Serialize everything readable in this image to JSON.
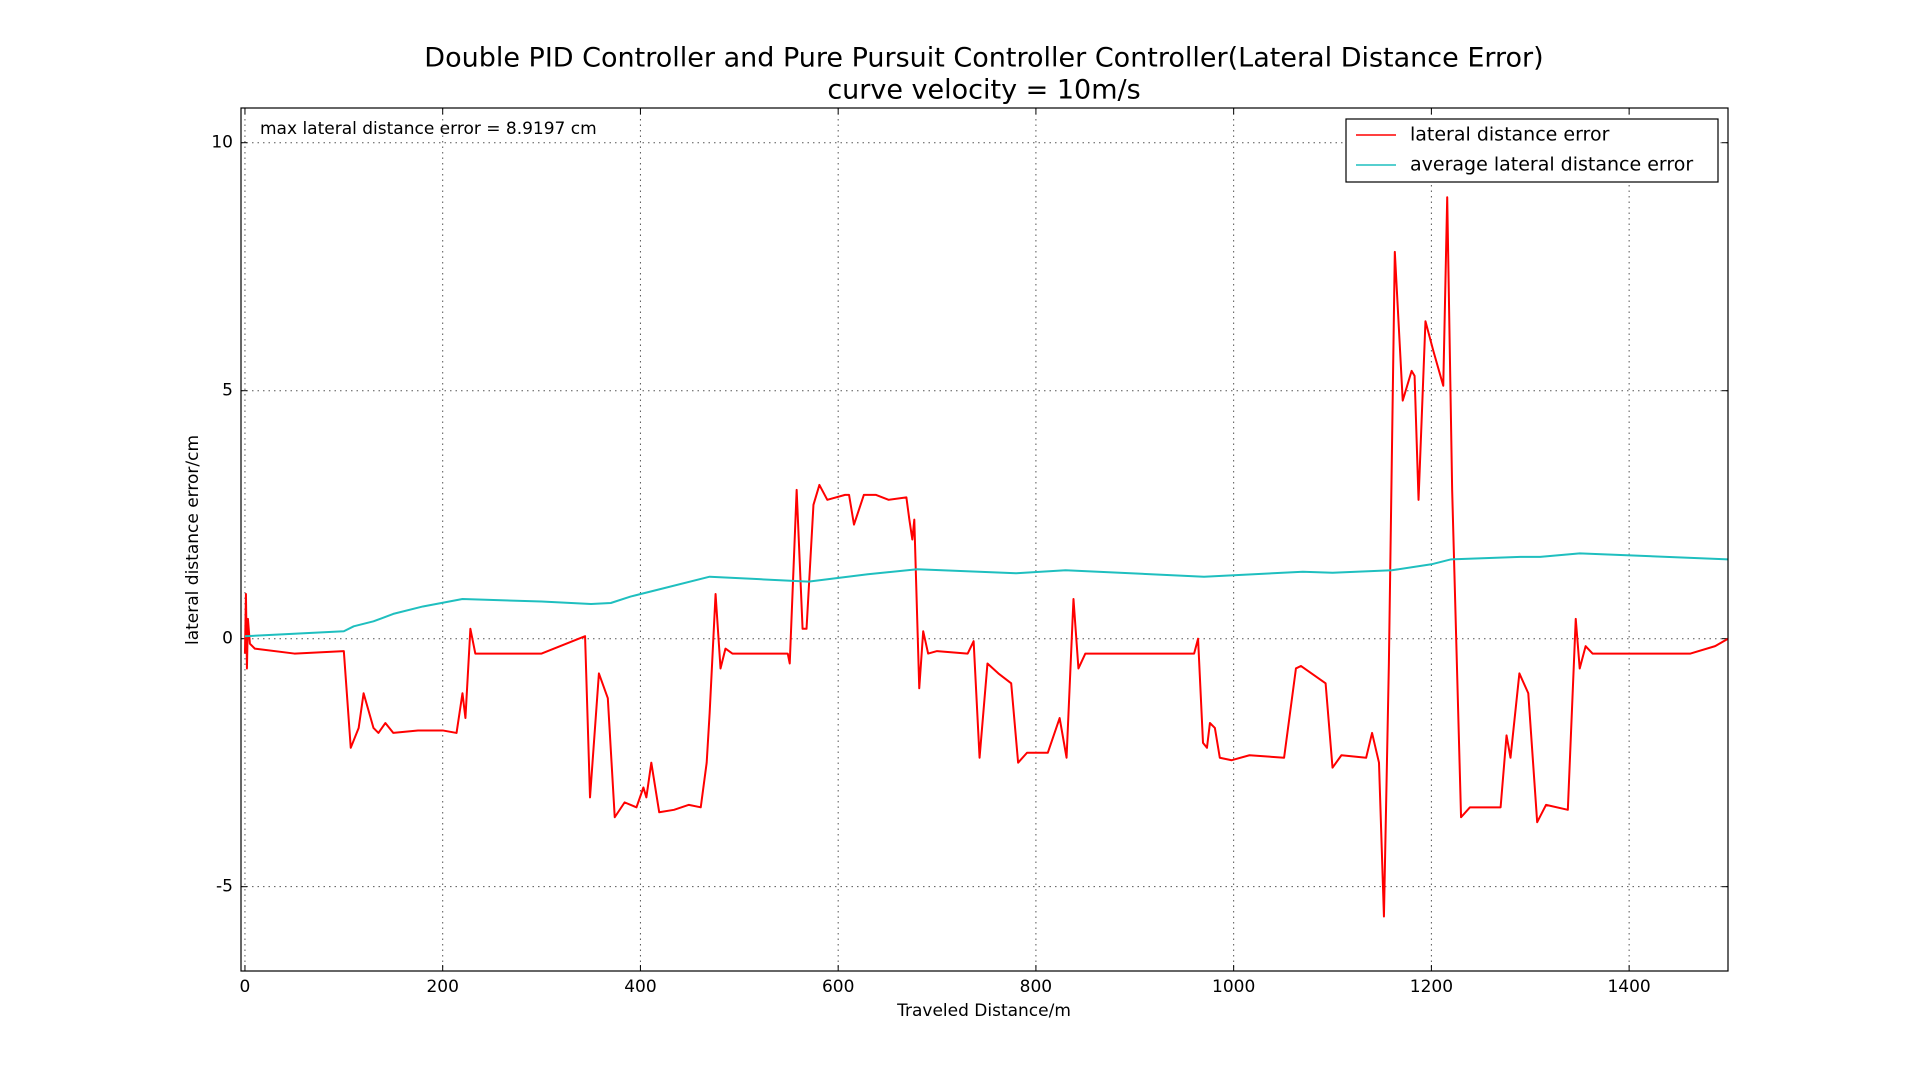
{
  "chart_data": {
    "type": "line",
    "title": "Double PID Controller and Pure Pursuit Controller Controller(Lateral Distance Error)",
    "subtitle": "curve velocity = 10m/s",
    "x_label": "Traveled Distance/m",
    "y_label": "lateral distance error/cm",
    "annotation": "max lateral distance error = 8.9197 cm",
    "xlim": [
      -4,
      1500
    ],
    "ylim": [
      -6.7,
      10.7
    ],
    "xticks": [
      0,
      200,
      400,
      600,
      800,
      1000,
      1200,
      1400
    ],
    "yticks": [
      -5,
      0,
      5,
      10
    ],
    "grid": true,
    "legend": "upper right",
    "series": [
      {
        "name": "lateral distance error",
        "color": "#ff0000",
        "x": [
          0,
          1,
          2,
          3,
          5,
          10,
          50,
          100,
          107,
          115,
          120,
          130,
          135,
          142,
          150,
          175,
          200,
          214,
          220,
          223,
          228,
          233,
          240,
          300,
          344,
          349,
          358,
          367,
          374,
          384,
          396,
          403,
          406,
          411,
          419,
          434,
          449,
          461,
          467,
          470,
          476,
          481,
          486,
          493,
          549,
          551,
          558,
          564,
          568,
          575,
          581,
          589,
          607,
          611,
          616,
          626,
          638,
          651,
          669,
          672,
          675,
          677,
          682,
          686,
          691,
          700,
          731,
          737,
          743,
          751,
          762,
          775,
          782,
          791,
          812,
          824,
          831,
          838,
          843,
          850,
          960,
          964,
          969,
          973,
          976,
          981,
          986,
          998,
          1016,
          1051,
          1063,
          1068,
          1093,
          1100,
          1109,
          1134,
          1140,
          1147,
          1152,
          1157,
          1163,
          1171,
          1180,
          1183,
          1187,
          1194,
          1202,
          1212,
          1216,
          1221,
          1230,
          1239,
          1270,
          1276,
          1280,
          1289,
          1298,
          1307,
          1316,
          1338,
          1341,
          1346,
          1350,
          1356,
          1363,
          1462,
          1487,
          1500
        ],
        "values": [
          -0.3,
          0.9,
          -0.6,
          0.4,
          -0.1,
          -0.2,
          -0.3,
          -0.25,
          -2.2,
          -1.8,
          -1.1,
          -1.8,
          -1.9,
          -1.7,
          -1.9,
          -1.85,
          -1.85,
          -1.9,
          -1.1,
          -1.6,
          0.2,
          -0.3,
          -0.3,
          -0.3,
          0.05,
          -3.2,
          -0.7,
          -1.2,
          -3.6,
          -3.3,
          -3.4,
          -3.0,
          -3.2,
          -2.5,
          -3.5,
          -3.45,
          -3.35,
          -3.4,
          -2.5,
          -1.5,
          0.9,
          -0.6,
          -0.2,
          -0.3,
          -0.3,
          -0.5,
          3.0,
          0.2,
          0.2,
          2.7,
          3.1,
          2.8,
          2.9,
          2.9,
          2.3,
          2.9,
          2.9,
          2.8,
          2.85,
          2.4,
          2.0,
          2.4,
          -1.0,
          0.15,
          -0.3,
          -0.25,
          -0.3,
          -0.05,
          -2.4,
          -0.5,
          -0.7,
          -0.9,
          -2.5,
          -2.3,
          -2.3,
          -1.6,
          -2.4,
          0.8,
          -0.6,
          -0.3,
          -0.3,
          0.0,
          -2.1,
          -2.2,
          -1.7,
          -1.8,
          -2.4,
          -2.45,
          -2.35,
          -2.4,
          -0.6,
          -0.55,
          -0.9,
          -2.6,
          -2.35,
          -2.4,
          -1.9,
          -2.5,
          -5.6,
          -0.5,
          7.8,
          4.8,
          5.4,
          5.3,
          2.8,
          6.4,
          5.8,
          5.1,
          8.9,
          3.0,
          -3.6,
          -3.4,
          -3.4,
          -1.95,
          -2.4,
          -0.7,
          -1.1,
          -3.7,
          -3.35,
          -3.45,
          -2.0,
          0.4,
          -0.6,
          -0.15,
          -0.3,
          -0.3,
          -0.15,
          0.0
        ]
      },
      {
        "name": "average lateral distance error",
        "color": "#1fbfbf",
        "x": [
          0,
          100,
          110,
          130,
          150,
          180,
          220,
          300,
          350,
          370,
          390,
          420,
          470,
          520,
          570,
          630,
          680,
          780,
          830,
          970,
          1070,
          1100,
          1160,
          1200,
          1220,
          1290,
          1310,
          1350,
          1500
        ],
        "values": [
          0.05,
          0.15,
          0.25,
          0.35,
          0.5,
          0.65,
          0.8,
          0.75,
          0.7,
          0.72,
          0.85,
          1.0,
          1.25,
          1.2,
          1.15,
          1.3,
          1.4,
          1.32,
          1.38,
          1.25,
          1.35,
          1.33,
          1.38,
          1.5,
          1.6,
          1.65,
          1.65,
          1.72,
          1.6
        ]
      }
    ]
  }
}
